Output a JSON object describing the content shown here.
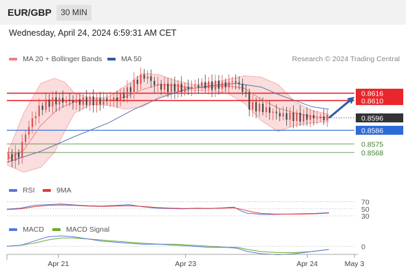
{
  "header": {
    "symbol": "EUR/GBP",
    "timeframe": "30 MIN"
  },
  "datetime": "Wednesday, April 24, 2024 6:59:31 AM CET",
  "legend": {
    "ma20": "MA 20 + Bollinger Bands",
    "ma50": "MA 50",
    "credit": "Research © 2024 Trading Central",
    "rsi": "RSI",
    "rsi9": "9MA",
    "macd": "MACD",
    "macd_signal": "MACD Signal"
  },
  "colors": {
    "bollinger": "#f4b4b4",
    "ma20": "#f08080",
    "ma50": "#5577aa",
    "resistance": "#e8262b",
    "support": "#2e6bd6",
    "target": "#3d7f2a",
    "arrow": "#2d5ca8",
    "current": "#333333",
    "up_candle": "#e05050",
    "down_candle": "#444444",
    "rsi": "#5577dd",
    "rsi9": "#e03a3a",
    "macd": "#5577dd",
    "macd_signal": "#6aaa2a"
  },
  "chart_data": [
    {
      "type": "candlestick",
      "name": "price",
      "ylim": [
        0.8549,
        0.8638
      ],
      "price_labels": [
        {
          "value": 0.8616,
          "text": "0.8616",
          "kind": "resistance"
        },
        {
          "value": 0.861,
          "text": "0.8610",
          "kind": "resistance"
        },
        {
          "value": 0.8596,
          "text": "0.8596",
          "kind": "current"
        },
        {
          "value": 0.8586,
          "text": "0.8586",
          "kind": "support"
        },
        {
          "value": 0.8575,
          "text": "0.8575",
          "kind": "target"
        },
        {
          "value": 0.8568,
          "text": "0.8568",
          "kind": "target"
        }
      ],
      "x_ticks": [
        "Apr 21",
        "Apr 23",
        "Apr 24",
        "May 3"
      ],
      "close_path": [
        [
          0,
          0.8563
        ],
        [
          4,
          0.8565
        ],
        [
          7,
          0.8566
        ],
        [
          10,
          0.858
        ],
        [
          14,
          0.8592
        ],
        [
          18,
          0.8602
        ],
        [
          22,
          0.8607
        ],
        [
          26,
          0.8609
        ],
        [
          30,
          0.861
        ],
        [
          36,
          0.861
        ],
        [
          42,
          0.8609
        ],
        [
          48,
          0.861
        ],
        [
          54,
          0.8609
        ],
        [
          60,
          0.8611
        ],
        [
          66,
          0.8612
        ],
        [
          70,
          0.8616
        ],
        [
          74,
          0.8622
        ],
        [
          78,
          0.8628
        ],
        [
          82,
          0.863
        ],
        [
          85,
          0.8626
        ],
        [
          88,
          0.8622
        ],
        [
          92,
          0.8621
        ],
        [
          96,
          0.862
        ],
        [
          100,
          0.8621
        ],
        [
          104,
          0.8619
        ],
        [
          108,
          0.8621
        ],
        [
          112,
          0.8622
        ],
        [
          116,
          0.8623
        ],
        [
          120,
          0.8622
        ],
        [
          124,
          0.8623
        ],
        [
          128,
          0.8622
        ],
        [
          131,
          0.8624
        ],
        [
          134,
          0.8627
        ],
        [
          137,
          0.8622
        ],
        [
          140,
          0.8618
        ],
        [
          143,
          0.8606
        ],
        [
          146,
          0.8605
        ],
        [
          150,
          0.8604
        ],
        [
          154,
          0.8602
        ],
        [
          158,
          0.86
        ],
        [
          162,
          0.8598
        ],
        [
          166,
          0.8597
        ],
        [
          170,
          0.8597
        ],
        [
          174,
          0.8596
        ],
        [
          178,
          0.8597
        ],
        [
          182,
          0.8596
        ],
        [
          186,
          0.8596
        ],
        [
          190,
          0.8596
        ]
      ],
      "ma20_path": [
        [
          0,
          0.8562
        ],
        [
          10,
          0.857
        ],
        [
          20,
          0.859
        ],
        [
          30,
          0.8603
        ],
        [
          40,
          0.8609
        ],
        [
          50,
          0.861
        ],
        [
          60,
          0.861
        ],
        [
          70,
          0.8613
        ],
        [
          80,
          0.8619
        ],
        [
          90,
          0.8623
        ],
        [
          100,
          0.8622
        ],
        [
          110,
          0.862
        ],
        [
          120,
          0.8621
        ],
        [
          130,
          0.8622
        ],
        [
          140,
          0.862
        ],
        [
          150,
          0.8611
        ],
        [
          160,
          0.8604
        ],
        [
          170,
          0.86
        ],
        [
          180,
          0.8597
        ],
        [
          190,
          0.8596
        ]
      ],
      "bollinger_upper_path": [
        [
          0,
          0.8566
        ],
        [
          10,
          0.86
        ],
        [
          20,
          0.8624
        ],
        [
          28,
          0.8628
        ],
        [
          34,
          0.8625
        ],
        [
          40,
          0.8616
        ],
        [
          50,
          0.8612
        ],
        [
          60,
          0.8613
        ],
        [
          70,
          0.8622
        ],
        [
          80,
          0.8632
        ],
        [
          90,
          0.8631
        ],
        [
          100,
          0.8626
        ],
        [
          110,
          0.8623
        ],
        [
          120,
          0.8624
        ],
        [
          130,
          0.8627
        ],
        [
          140,
          0.863
        ],
        [
          150,
          0.8629
        ],
        [
          160,
          0.8623
        ],
        [
          170,
          0.8609
        ],
        [
          180,
          0.8602
        ],
        [
          190,
          0.8599
        ]
      ],
      "bollinger_lower_path": [
        [
          0,
          0.8558
        ],
        [
          10,
          0.8552
        ],
        [
          20,
          0.8556
        ],
        [
          28,
          0.8568
        ],
        [
          34,
          0.8585
        ],
        [
          40,
          0.86
        ],
        [
          50,
          0.8607
        ],
        [
          60,
          0.8606
        ],
        [
          70,
          0.8603
        ],
        [
          80,
          0.8605
        ],
        [
          90,
          0.8613
        ],
        [
          100,
          0.8617
        ],
        [
          110,
          0.8618
        ],
        [
          120,
          0.8618
        ],
        [
          130,
          0.8616
        ],
        [
          140,
          0.8608
        ],
        [
          150,
          0.8594
        ],
        [
          160,
          0.8585
        ],
        [
          170,
          0.859
        ],
        [
          180,
          0.8592
        ],
        [
          190,
          0.8593
        ]
      ],
      "ma50_path": [
        [
          0,
          0.856
        ],
        [
          20,
          0.8569
        ],
        [
          40,
          0.8581
        ],
        [
          60,
          0.8592
        ],
        [
          75,
          0.8603
        ],
        [
          90,
          0.8612
        ],
        [
          105,
          0.8619
        ],
        [
          120,
          0.8622
        ],
        [
          135,
          0.8624
        ],
        [
          150,
          0.8621
        ],
        [
          160,
          0.8615
        ],
        [
          170,
          0.861
        ],
        [
          180,
          0.8605
        ],
        [
          190,
          0.8603
        ]
      ],
      "projection": {
        "from": [
          190,
          0.8596
        ],
        "to": [
          205,
          0.8613
        ]
      }
    },
    {
      "type": "line",
      "name": "rsi",
      "ylim": [
        28,
        75
      ],
      "levels": [
        70,
        50,
        30
      ],
      "level_labels": [
        "70",
        "50",
        "30"
      ],
      "rsi_path": [
        [
          0,
          49
        ],
        [
          8,
          52
        ],
        [
          16,
          60
        ],
        [
          24,
          62
        ],
        [
          32,
          64
        ],
        [
          40,
          61
        ],
        [
          48,
          59
        ],
        [
          56,
          58
        ],
        [
          64,
          60
        ],
        [
          72,
          62
        ],
        [
          80,
          56
        ],
        [
          88,
          52
        ],
        [
          96,
          51
        ],
        [
          104,
          50
        ],
        [
          112,
          52
        ],
        [
          120,
          51
        ],
        [
          128,
          53
        ],
        [
          134,
          55
        ],
        [
          138,
          44
        ],
        [
          142,
          37
        ],
        [
          146,
          36
        ],
        [
          150,
          34
        ],
        [
          158,
          34
        ],
        [
          166,
          35
        ],
        [
          174,
          36
        ],
        [
          182,
          37
        ],
        [
          190,
          39
        ]
      ],
      "rsi9_path": [
        [
          0,
          48
        ],
        [
          8,
          50
        ],
        [
          16,
          56
        ],
        [
          24,
          60
        ],
        [
          32,
          61
        ],
        [
          40,
          60
        ],
        [
          48,
          58
        ],
        [
          56,
          57
        ],
        [
          64,
          58
        ],
        [
          72,
          59
        ],
        [
          80,
          57
        ],
        [
          88,
          54
        ],
        [
          96,
          52
        ],
        [
          104,
          51
        ],
        [
          112,
          51
        ],
        [
          120,
          51
        ],
        [
          128,
          52
        ],
        [
          134,
          53
        ],
        [
          138,
          49
        ],
        [
          142,
          44
        ],
        [
          146,
          40
        ],
        [
          150,
          37
        ],
        [
          158,
          35
        ],
        [
          166,
          35
        ],
        [
          174,
          35
        ],
        [
          182,
          36
        ],
        [
          190,
          38
        ]
      ]
    },
    {
      "type": "line",
      "name": "macd",
      "ylim": [
        -0.0009,
        0.0012
      ],
      "zero_label": "0",
      "macd_path": [
        [
          0,
          0.0
        ],
        [
          8,
          0.0001
        ],
        [
          16,
          0.0005
        ],
        [
          24,
          0.0009
        ],
        [
          32,
          0.001
        ],
        [
          40,
          0.0009
        ],
        [
          48,
          0.0007
        ],
        [
          56,
          0.0005
        ],
        [
          64,
          0.0004
        ],
        [
          72,
          0.0003
        ],
        [
          80,
          0.0002
        ],
        [
          90,
          0.0002
        ],
        [
          100,
          0.0001
        ],
        [
          110,
          0.0
        ],
        [
          120,
          -0.0001
        ],
        [
          130,
          -0.0001
        ],
        [
          136,
          -0.0002
        ],
        [
          142,
          -0.0005
        ],
        [
          150,
          -0.0007
        ],
        [
          160,
          -0.0008
        ],
        [
          170,
          -0.0007
        ],
        [
          180,
          -0.0005
        ],
        [
          190,
          -0.0003
        ]
      ],
      "signal_path": [
        [
          0,
          0.0
        ],
        [
          8,
          0.0001
        ],
        [
          16,
          0.0003
        ],
        [
          24,
          0.0006
        ],
        [
          32,
          0.0008
        ],
        [
          40,
          0.0008
        ],
        [
          48,
          0.0007
        ],
        [
          56,
          0.0006
        ],
        [
          64,
          0.0005
        ],
        [
          72,
          0.0004
        ],
        [
          80,
          0.0003
        ],
        [
          90,
          0.0002
        ],
        [
          100,
          0.0002
        ],
        [
          110,
          0.0001
        ],
        [
          120,
          0.0
        ],
        [
          130,
          -0.0001
        ],
        [
          136,
          -0.0001
        ],
        [
          142,
          -0.0003
        ],
        [
          150,
          -0.0005
        ],
        [
          160,
          -0.0006
        ],
        [
          170,
          -0.0006
        ],
        [
          180,
          -0.0005
        ],
        [
          190,
          -0.0003
        ]
      ]
    }
  ]
}
